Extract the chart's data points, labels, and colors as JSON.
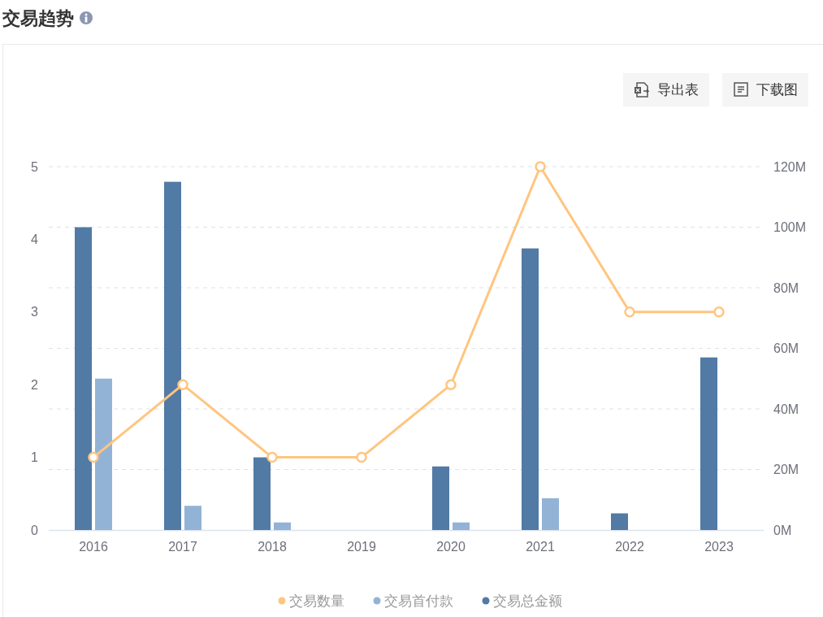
{
  "chart_data": {
    "type": "bar",
    "title": "交易趋势",
    "categories": [
      "2016",
      "2017",
      "2018",
      "2019",
      "2020",
      "2021",
      "2022",
      "2023"
    ],
    "series": [
      {
        "name": "交易数量",
        "type": "line",
        "color": "#ffc57f",
        "values": [
          1,
          2,
          1,
          1,
          2,
          5,
          3,
          3
        ]
      },
      {
        "name": "交易首付款",
        "type": "bar",
        "axis": "y2",
        "color": "#93b3d6",
        "values": [
          50,
          8,
          2.5,
          null,
          2.5,
          10.5,
          null,
          null
        ]
      },
      {
        "name": "交易总金额",
        "type": "bar",
        "axis": "y2",
        "color": "#517aa5",
        "values": [
          100,
          115,
          24,
          null,
          21,
          93,
          5.5,
          57
        ]
      }
    ],
    "ylim": [
      0,
      5
    ],
    "yticks": [
      0,
      1,
      2,
      3,
      4,
      5
    ],
    "y2lim": [
      0,
      120
    ],
    "y2ticks": [
      {
        "value": 0,
        "label": "0M"
      },
      {
        "value": 20,
        "label": "20M"
      },
      {
        "value": 40,
        "label": "40M"
      },
      {
        "value": 60,
        "label": "60M"
      },
      {
        "value": 80,
        "label": "80M"
      },
      {
        "value": 100,
        "label": "100M"
      },
      {
        "value": 120,
        "label": "120M"
      }
    ],
    "grid": "y2",
    "legend": "bottom",
    "marker": "circle",
    "annotations": [
      "导出表",
      "下载图"
    ]
  }
}
